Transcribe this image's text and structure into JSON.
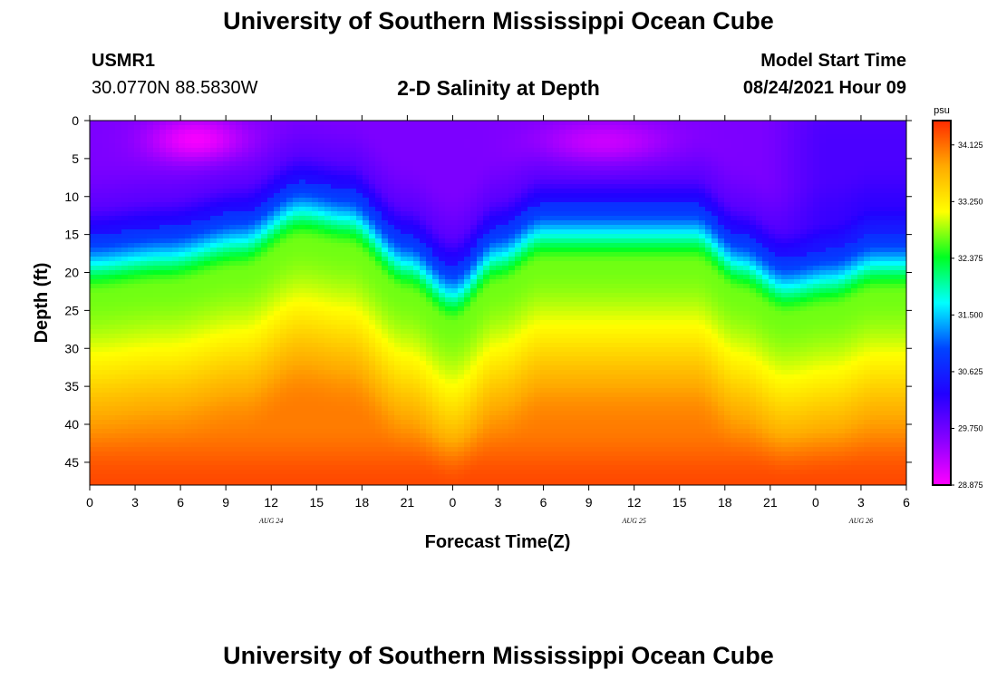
{
  "header": {
    "title": "University of Southern Mississippi Ocean Cube",
    "station_id": "USMR1",
    "station_coords": "30.0770N  88.5830W",
    "subtitle": "2-D Salinity at Depth",
    "model_start_label": "Model Start Time",
    "model_start_value": "08/24/2021 Hour 09"
  },
  "footer": {
    "title": "University of Southern Mississippi Ocean Cube"
  },
  "chart_data": {
    "type": "heatmap",
    "title": "2-D Salinity at Depth",
    "xlabel": "Forecast Time(Z)",
    "ylabel": "Depth (ft)",
    "x_ticks": [
      "0",
      "3",
      "6",
      "9",
      "12",
      "15",
      "18",
      "21",
      "0",
      "3",
      "6",
      "9",
      "12",
      "15",
      "18",
      "21",
      "0",
      "3",
      "6"
    ],
    "x_range_hours": [
      0,
      54
    ],
    "date_labels": [
      {
        "hour": 12,
        "label": "AUG  24"
      },
      {
        "hour": 36,
        "label": "AUG  25"
      },
      {
        "hour": 51,
        "label": "AUG  26"
      }
    ],
    "y_ticks": [
      0,
      5,
      10,
      15,
      20,
      25,
      30,
      35,
      40,
      45
    ],
    "y_range": [
      0,
      48
    ],
    "y_inverted": true,
    "colorbar": {
      "unit": "psu",
      "min": 28.875,
      "max": 34.5,
      "labels": [
        "34.125",
        "33.250",
        "32.375",
        "31.500",
        "30.625",
        "29.750",
        "28.875"
      ],
      "colors": [
        "#ff00ff",
        "#8800ff",
        "#2200ff",
        "#0044ff",
        "#00ffff",
        "#00ff22",
        "#ffff00",
        "#ffaa00",
        "#ff2a00"
      ]
    },
    "halocline_depth_ft": [
      {
        "hour": 0,
        "depth": 17
      },
      {
        "hour": 5,
        "depth": 16
      },
      {
        "hour": 10,
        "depth": 14
      },
      {
        "hour": 14,
        "depth": 10
      },
      {
        "hour": 17,
        "depth": 11
      },
      {
        "hour": 21,
        "depth": 17
      },
      {
        "hour": 24,
        "depth": 21
      },
      {
        "hour": 27,
        "depth": 16
      },
      {
        "hour": 30,
        "depth": 13
      },
      {
        "hour": 33,
        "depth": 13
      },
      {
        "hour": 36,
        "depth": 13
      },
      {
        "hour": 40,
        "depth": 13
      },
      {
        "hour": 43,
        "depth": 17
      },
      {
        "hour": 46,
        "depth": 20
      },
      {
        "hour": 49,
        "depth": 19
      },
      {
        "hour": 52,
        "depth": 17
      },
      {
        "hour": 54,
        "depth": 17
      }
    ],
    "notes": "Fresher water (28.9-30 psu) near surface 0-10 ft; saltier water (33.5-34.5 psu) at depth 35-48 ft; halocline rises near hour 14 and hours 30-40, deepens near hours 24 and 46."
  }
}
